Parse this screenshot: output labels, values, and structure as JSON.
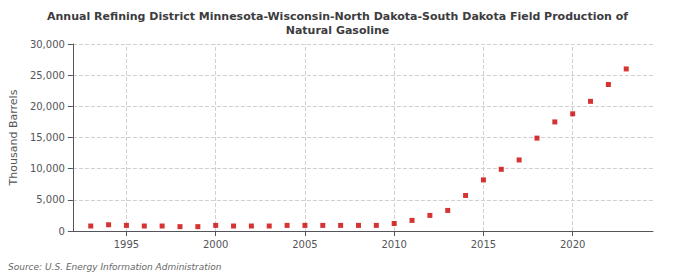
{
  "chart_data": {
    "type": "scatter",
    "title": "Annual Refining District Minnesota-Wisconsin-North Dakota-South Dakota Field Production of\nNatural Gasoline",
    "ylabel": "Thousand Barrels",
    "annotation": "Source: U.S. Energy Information Administration",
    "x": [
      1993,
      1994,
      1995,
      1996,
      1997,
      1998,
      1999,
      2000,
      2001,
      2002,
      2003,
      2004,
      2005,
      2006,
      2007,
      2008,
      2009,
      2010,
      2011,
      2012,
      2013,
      2014,
      2015,
      2016,
      2017,
      2018,
      2019,
      2020,
      2021,
      2022,
      2023
    ],
    "values": [
      800,
      1000,
      900,
      800,
      800,
      700,
      700,
      900,
      800,
      800,
      800,
      900,
      900,
      900,
      900,
      900,
      900,
      1200,
      1700,
      2500,
      3300,
      5700,
      8200,
      9900,
      11400,
      14900,
      17500,
      18800,
      20800,
      23500,
      26000
    ],
    "color": "#cc0000",
    "marker": "square",
    "xlim": [
      1992,
      2024.5
    ],
    "xticks": [
      1995,
      2000,
      2005,
      2010,
      2015,
      2020
    ],
    "ylim": [
      0,
      30000
    ],
    "yticks": [
      0,
      {
        "value": 5000,
        "label": "5,000"
      },
      {
        "value": 10000,
        "label": "10,000"
      },
      {
        "value": 15000,
        "label": "15,000"
      },
      {
        "value": 20000,
        "label": "20,000"
      },
      {
        "value": 25000,
        "label": "25,000"
      },
      {
        "value": 30000,
        "label": "30,000"
      }
    ],
    "grid": true
  }
}
